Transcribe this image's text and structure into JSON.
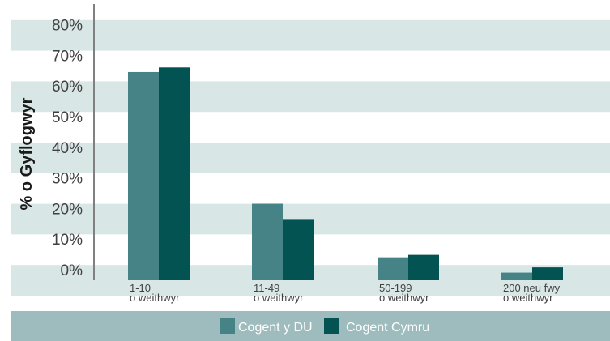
{
  "chart_data": {
    "type": "bar",
    "ylabel": "% o Gyflogwyr",
    "xlabel": "",
    "ylim": [
      0,
      0.85
    ],
    "yticks": [
      "0%",
      "10%",
      "20%",
      "30%",
      "40%",
      "50%",
      "60%",
      "70%",
      "80%"
    ],
    "categories": [
      [
        "1-10",
        "o weithwyr"
      ],
      [
        "11-49",
        "o weithwyr"
      ],
      [
        "50-199",
        "o weithwyr"
      ],
      [
        "200 neu fwy",
        "o weithwyr"
      ]
    ],
    "series": [
      {
        "name": "Cogent y DU",
        "color": "#468387",
        "values": [
          0.68,
          0.25,
          0.075,
          0.025
        ]
      },
      {
        "name": "Cogent Cymru",
        "color": "#035352",
        "values": [
          0.695,
          0.2,
          0.083,
          0.042
        ]
      }
    ],
    "grid": "alternating bands",
    "legend_position": "bottom"
  },
  "colors": {
    "band": "#d9e6e6",
    "legend_bar": "#9ebcbd",
    "axis": "#808080"
  }
}
